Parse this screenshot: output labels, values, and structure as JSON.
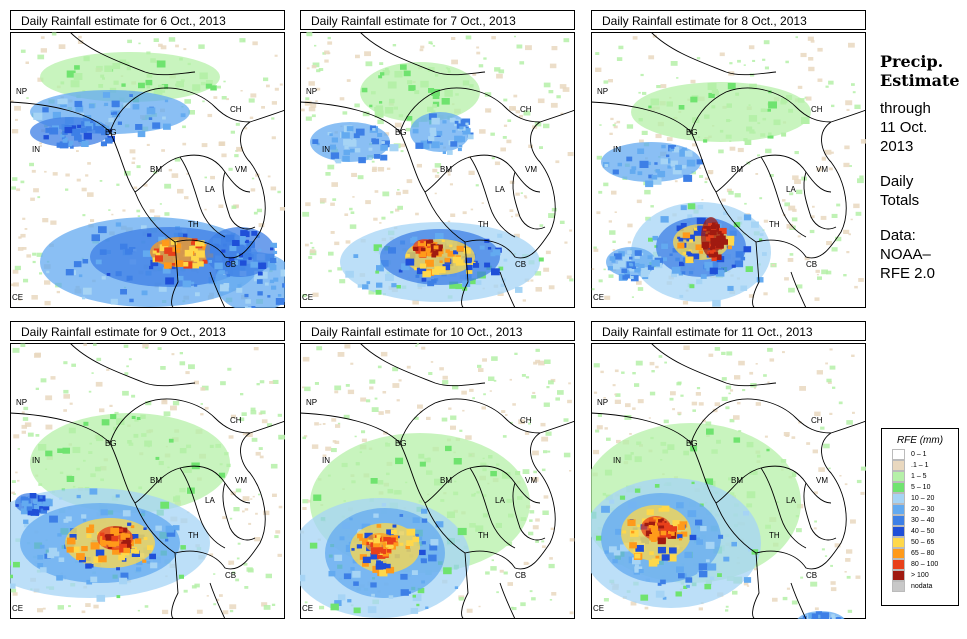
{
  "panels": [
    {
      "title": "Daily Rainfall estimate for  6 Oct., 2013"
    },
    {
      "title": "Daily Rainfall estimate for  7 Oct., 2013"
    },
    {
      "title": "Daily Rainfall estimate for  8 Oct., 2013"
    },
    {
      "title": "Daily Rainfall estimate for  9 Oct., 2013"
    },
    {
      "title": "Daily Rainfall estimate for  10 Oct., 2013"
    },
    {
      "title": "Daily Rainfall estimate for  11 Oct., 2013"
    }
  ],
  "country_labels": {
    "np": "NP",
    "ch": "CH",
    "bg": "BG",
    "in": "IN",
    "bm": "BM",
    "vm": "VM",
    "la": "LA",
    "th": "TH",
    "cb": "CB",
    "ce": "CE"
  },
  "side": {
    "title_line1": "Precip.",
    "title_line2": "Estimate",
    "through": "through",
    "date_line1": "11 Oct.",
    "date_line2": "2013",
    "daily_line1": "Daily",
    "daily_line2": "Totals",
    "data_line1": "Data:",
    "data_line2": "NOAA–",
    "data_line3": "RFE 2.0"
  },
  "legend": {
    "title": "RFE (mm)",
    "items": [
      {
        "label": "0 – 1",
        "color": "#ffffff"
      },
      {
        "label": ".1 – 1",
        "color": "#e9d8bf"
      },
      {
        "label": "1 – 5",
        "color": "#b5f0a8"
      },
      {
        "label": "5 – 10",
        "color": "#6fe36f"
      },
      {
        "label": "10 – 20",
        "color": "#a6d4f5"
      },
      {
        "label": "20 – 30",
        "color": "#63aaf0"
      },
      {
        "label": "30 – 40",
        "color": "#3d7fe6"
      },
      {
        "label": "40 – 50",
        "color": "#1f4fd8"
      },
      {
        "label": "50 – 65",
        "color": "#ffd84a"
      },
      {
        "label": "65 – 80",
        "color": "#ff9a1a"
      },
      {
        "label": "80 – 100",
        "color": "#e8401a"
      },
      {
        "label": "> 100",
        "color": "#a01a10"
      },
      {
        "label": "nodata",
        "color": "#c8c8c8"
      }
    ]
  }
}
